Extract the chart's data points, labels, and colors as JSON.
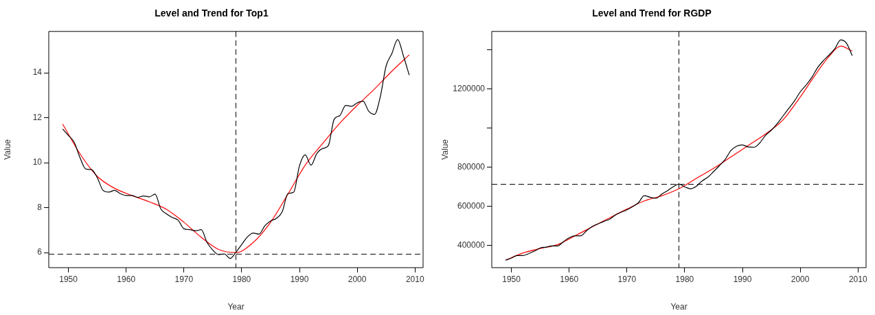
{
  "chart_data": [
    {
      "type": "line",
      "title": "Level and Trend for Top1",
      "xlabel": "Year",
      "ylabel": "Value",
      "xlim": [
        1946.6,
        2011.4
      ],
      "xticks": [
        1950,
        1960,
        1970,
        1980,
        1990,
        2000,
        2010
      ],
      "ylim": [
        5.33,
        15.84
      ],
      "yticks": [
        6,
        8,
        10,
        12,
        14
      ],
      "series": [
        {
          "color": "#000000",
          "x": [
            1949,
            1950,
            1951,
            1952,
            1953,
            1954,
            1955,
            1956,
            1957,
            1958,
            1959,
            1960,
            1961,
            1962,
            1963,
            1964,
            1965,
            1966,
            1967,
            1968,
            1969,
            1970,
            1971,
            1972,
            1973,
            1974,
            1975,
            1976,
            1977,
            1978,
            1979,
            1980,
            1981,
            1982,
            1983,
            1984,
            1985,
            1986,
            1987,
            1988,
            1989,
            1990,
            1991,
            1992,
            1993,
            1994,
            1995,
            1996,
            1997,
            1998,
            1999,
            2000,
            2001,
            2002,
            2003,
            2004,
            2005,
            2006,
            2007,
            2008,
            2009
          ],
          "values": [
            11.5,
            11.21,
            10.91,
            10.23,
            9.72,
            9.69,
            9.33,
            8.77,
            8.69,
            8.77,
            8.62,
            8.54,
            8.54,
            8.46,
            8.52,
            8.48,
            8.6,
            7.94,
            7.72,
            7.56,
            7.44,
            7.06,
            7.02,
            6.97,
            7.02,
            6.45,
            6.11,
            5.91,
            5.94,
            5.74,
            6.02,
            6.36,
            6.7,
            6.87,
            6.82,
            7.19,
            7.41,
            7.52,
            7.81,
            8.62,
            8.69,
            9.86,
            10.35,
            9.89,
            10.4,
            10.63,
            10.76,
            11.93,
            12.1,
            12.55,
            12.51,
            12.66,
            12.74,
            12.29,
            12.15,
            12.94,
            14.3,
            14.86,
            15.48,
            14.75,
            13.9
          ]
        },
        {
          "color": "#ff0000",
          "x": [
            1949,
            1952,
            1955,
            1958,
            1961,
            1964,
            1967,
            1970,
            1973,
            1976,
            1979,
            1982,
            1985,
            1988,
            1991,
            1994,
            1997,
            2000,
            2003,
            2006,
            2009
          ],
          "values": [
            11.72,
            10.4,
            9.39,
            8.86,
            8.54,
            8.26,
            7.92,
            7.35,
            6.68,
            6.14,
            6.0,
            6.45,
            7.35,
            8.6,
            9.89,
            10.85,
            11.76,
            12.55,
            13.28,
            14.07,
            14.8
          ]
        }
      ],
      "ref_lines": [
        {
          "axis": "x",
          "value": 1979,
          "line_style": "dashed",
          "color": "#000000"
        },
        {
          "axis": "y",
          "value": 5.93,
          "line_style": "dashed",
          "color": "#000000"
        }
      ]
    },
    {
      "type": "line",
      "title": "Level and Trend for RGDP",
      "xlabel": "Year",
      "ylabel": "Value",
      "xlim": [
        1946.6,
        2011.4
      ],
      "xticks": [
        1950,
        1960,
        1970,
        1980,
        1990,
        2000,
        2010
      ],
      "ylim": [
        285000,
        1495000
      ],
      "yticks": [
        400000,
        600000,
        800000,
        {
          "value": 1000000,
          "label": null
        },
        1200000,
        {
          "value": 1400000,
          "label": null
        }
      ],
      "series": [
        {
          "color": "#000000",
          "x": [
            1949,
            1950,
            1951,
            1952,
            1953,
            1954,
            1955,
            1956,
            1957,
            1958,
            1959,
            1960,
            1961,
            1962,
            1963,
            1964,
            1965,
            1966,
            1967,
            1968,
            1969,
            1970,
            1971,
            1972,
            1973,
            1974,
            1975,
            1976,
            1977,
            1978,
            1979,
            1980,
            1981,
            1982,
            1983,
            1984,
            1985,
            1986,
            1987,
            1988,
            1989,
            1990,
            1991,
            1992,
            1993,
            1994,
            1995,
            1996,
            1997,
            1998,
            1999,
            2000,
            2001,
            2002,
            2003,
            2004,
            2005,
            2006,
            2007,
            2008,
            2009
          ],
          "values": [
            323000,
            334000,
            347000,
            347000,
            357000,
            370000,
            386000,
            390000,
            396000,
            396000,
            418000,
            438000,
            448000,
            448000,
            474000,
            496000,
            509000,
            522000,
            533000,
            555000,
            569000,
            581000,
            598000,
            618000,
            654000,
            646000,
            640000,
            661000,
            679000,
            699000,
            713000,
            699000,
            689000,
            702000,
            729000,
            748000,
            777000,
            807000,
            839000,
            885000,
            907000,
            914000,
            903000,
            902000,
            924000,
            963000,
            989000,
            1022000,
            1061000,
            1100000,
            1139000,
            1185000,
            1220000,
            1259000,
            1309000,
            1345000,
            1374000,
            1407000,
            1452000,
            1435000,
            1371000
          ]
        },
        {
          "color": "#ff0000",
          "x": [
            1949,
            1952,
            1955,
            1958,
            1961,
            1964,
            1967,
            1970,
            1973,
            1976,
            1979,
            1982,
            1985,
            1988,
            1991,
            1994,
            1997,
            2000,
            2003,
            2005,
            2007,
            2009
          ],
          "values": [
            323000,
            360000,
            383000,
            403000,
            448000,
            494000,
            540000,
            585000,
            627000,
            653000,
            689000,
            742000,
            794000,
            852000,
            911000,
            970000,
            1041000,
            1159000,
            1289000,
            1367000,
            1420000,
            1394000
          ]
        }
      ],
      "ref_lines": [
        {
          "axis": "x",
          "value": 1979,
          "line_style": "dashed",
          "color": "#000000"
        },
        {
          "axis": "y",
          "value": 712000,
          "line_style": "dashed",
          "color": "#000000"
        }
      ]
    }
  ]
}
